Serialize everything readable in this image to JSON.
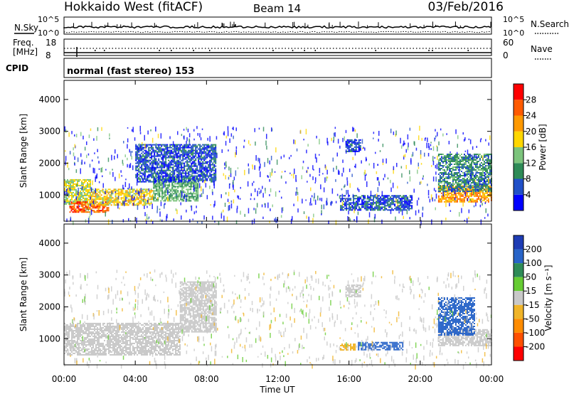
{
  "header": {
    "station": "Hokkaido West (fitACF)",
    "beam": "Beam 14",
    "date": "03/Feb/2016",
    "cpid_label": "CPID",
    "cpid_text": "normal (fast stereo) 153"
  },
  "noise_panel": {
    "left_label": "N.Sky",
    "right_label": "N.Search",
    "left_ticks": [
      "10^5",
      "10^0"
    ],
    "right_ticks": [
      "10^5",
      "10^0"
    ]
  },
  "freq_panel": {
    "left_label_top": "Freq.",
    "left_label_bottom": "[MHz]",
    "right_label": "Nave",
    "left_ticks": [
      "18",
      "8"
    ],
    "right_ticks": [
      "60",
      "0"
    ]
  },
  "chart_data": [
    {
      "type": "heatmap",
      "name": "power",
      "xlabel": "",
      "ylabel": "Slant Range [km]",
      "x_tick_labels": [
        "00:00",
        "04:00",
        "08:00",
        "12:00",
        "16:00",
        "20:00",
        "00:00"
      ],
      "x_range_hours": [
        0,
        24
      ],
      "y_ticks": [
        1000,
        2000,
        3000,
        4000
      ],
      "ylim": [
        180,
        4600
      ],
      "colorbar_label": "Power [dB]",
      "colorbar_ticks": [
        4,
        8,
        12,
        16,
        20,
        24,
        28
      ],
      "colorbar_range": [
        0,
        32
      ],
      "colors": [
        "#0000ff",
        "#2050c8",
        "#2e8b57",
        "#7cc47c",
        "#ffd700",
        "#ff9900",
        "#ff5a00",
        "#ff0000"
      ],
      "regions": [
        {
          "t": [
            0.0,
            1.5
          ],
          "r": [
            700,
            1500
          ],
          "value": 16
        },
        {
          "t": [
            0.3,
            2.5
          ],
          "r": [
            450,
            800
          ],
          "value": 26
        },
        {
          "t": [
            1.5,
            5.0
          ],
          "r": [
            700,
            1200
          ],
          "value": 18
        },
        {
          "t": [
            5.0,
            7.5
          ],
          "r": [
            800,
            1600
          ],
          "value": 12
        },
        {
          "t": [
            4.0,
            8.5
          ],
          "r": [
            1400,
            2600
          ],
          "value": 6
        },
        {
          "t": [
            15.8,
            16.6
          ],
          "r": [
            2350,
            2750
          ],
          "value": 6
        },
        {
          "t": [
            15.5,
            19.5
          ],
          "r": [
            550,
            1000
          ],
          "value": 6
        },
        {
          "t": [
            21.0,
            24.0
          ],
          "r": [
            800,
            1300
          ],
          "value": 22
        },
        {
          "t": [
            21.0,
            24.0
          ],
          "r": [
            1100,
            2300
          ],
          "value": 10
        }
      ]
    },
    {
      "type": "heatmap",
      "name": "velocity",
      "xlabel": "Time UT",
      "ylabel": "Slant Range [km]",
      "x_tick_labels": [
        "00:00",
        "04:00",
        "08:00",
        "12:00",
        "16:00",
        "20:00",
        "00:00"
      ],
      "x_range_hours": [
        0,
        24
      ],
      "y_ticks": [
        1000,
        2000,
        3000,
        4000
      ],
      "ylim": [
        180,
        4600
      ],
      "colorbar_label": "Velocity [m s⁻¹]",
      "colorbar_ticks": [
        "200",
        "100",
        "50",
        "15",
        "-15",
        "-50",
        "-100",
        "-200"
      ],
      "colors": [
        "#1e3cb4",
        "#2864c8",
        "#2e8b57",
        "#66cc33",
        "#c8c8c8",
        "#f0b428",
        "#ff8c00",
        "#ff5000",
        "#ff0000"
      ],
      "regions": [
        {
          "t": [
            0.0,
            6.5
          ],
          "r": [
            500,
            1500
          ],
          "value": 0
        },
        {
          "t": [
            6.5,
            8.5
          ],
          "r": [
            1200,
            2800
          ],
          "value": 0
        },
        {
          "t": [
            15.8,
            16.6
          ],
          "r": [
            2300,
            2700
          ],
          "value": 0
        },
        {
          "t": [
            16.5,
            19.0
          ],
          "r": [
            650,
            900
          ],
          "value": 70
        },
        {
          "t": [
            15.5,
            16.3
          ],
          "r": [
            650,
            850
          ],
          "value": -40
        },
        {
          "t": [
            21.0,
            24.0
          ],
          "r": [
            800,
            1300
          ],
          "value": 0
        },
        {
          "t": [
            21.0,
            23.0
          ],
          "r": [
            1100,
            2300
          ],
          "value": 60
        }
      ]
    }
  ]
}
